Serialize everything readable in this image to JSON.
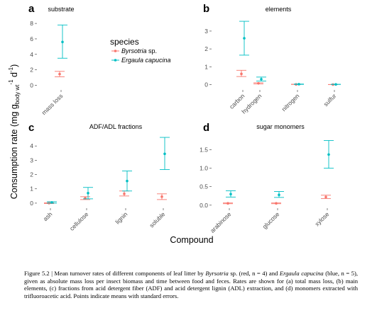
{
  "figure": {
    "ylabel_main": "Consumption rate (mg g",
    "ylabel_sub": "body wt",
    "ylabel_tail": " d",
    "ylabel_exp1": "-1",
    "ylabel_exp2": "-1",
    "ylabel_close": ")",
    "xlabel": "Compound"
  },
  "legend": {
    "title": "species",
    "entries": [
      {
        "name": "Byrsotria",
        "suffix": " sp.",
        "color": "#F8766D"
      },
      {
        "name": "Ergaula capucina",
        "suffix": "",
        "color": "#00BFC4"
      }
    ]
  },
  "chart_data": [
    {
      "type": "scatter",
      "panel": "a",
      "title": "substrate",
      "categories": [
        "mass loss"
      ],
      "yticks": [
        0,
        2,
        4,
        6,
        8
      ],
      "ylim": [
        -0.6,
        9.2
      ],
      "series": [
        {
          "name": "Byrsotria sp.",
          "color": "#F8766D",
          "values": [
            1.45
          ],
          "lower": [
            1.1
          ],
          "upper": [
            1.8
          ]
        },
        {
          "name": "Ergaula capucina",
          "color": "#00BFC4",
          "values": [
            5.6
          ],
          "lower": [
            3.5
          ],
          "upper": [
            7.8
          ]
        }
      ]
    },
    {
      "type": "scatter",
      "panel": "b",
      "title": "elements",
      "categories": [
        "carbon",
        "hydrogen",
        "nitrogen",
        "sulfur"
      ],
      "yticks": [
        0,
        1,
        2,
        3
      ],
      "ylim": [
        -0.3,
        3.95
      ],
      "series": [
        {
          "name": "Byrsotria sp.",
          "color": "#F8766D",
          "values": [
            0.6,
            0.07,
            0.01,
            0.0
          ],
          "lower": [
            0.45,
            0.04,
            0.005,
            0.0
          ],
          "upper": [
            0.8,
            0.1,
            0.02,
            0.005
          ]
        },
        {
          "name": "Ergaula capucina",
          "color": "#00BFC4",
          "values": [
            2.6,
            0.3,
            0.02,
            0.01
          ],
          "lower": [
            1.65,
            0.2,
            0.01,
            0.005
          ],
          "upper": [
            3.55,
            0.42,
            0.03,
            0.015
          ]
        }
      ]
    },
    {
      "type": "scatter",
      "panel": "c",
      "title": "ADF/ADL fractions",
      "categories": [
        "ash",
        "cellulose",
        "lignin",
        "soluble"
      ],
      "yticks": [
        0,
        1,
        2,
        3,
        4
      ],
      "ylim": [
        -0.35,
        4.9
      ],
      "series": [
        {
          "name": "Byrsotria sp.",
          "color": "#F8766D",
          "values": [
            0.0,
            0.35,
            0.65,
            0.45
          ],
          "lower": [
            -0.03,
            0.25,
            0.5,
            0.25
          ],
          "upper": [
            0.03,
            0.45,
            0.85,
            0.65
          ]
        },
        {
          "name": "Ergaula capucina",
          "color": "#00BFC4",
          "values": [
            0.05,
            0.7,
            1.55,
            3.45
          ],
          "lower": [
            0.0,
            0.3,
            0.85,
            2.35
          ],
          "upper": [
            0.1,
            1.1,
            2.25,
            4.6
          ]
        }
      ]
    },
    {
      "type": "scatter",
      "panel": "d",
      "title": "sugar monomers",
      "categories": [
        "arabinose",
        "glucose",
        "xylose"
      ],
      "yticks": [
        0.0,
        0.5,
        1.0,
        1.5
      ],
      "yticklabels": [
        "0.0",
        "0.5",
        "1.0",
        "1.5"
      ],
      "ylim": [
        -0.08,
        1.95
      ],
      "series": [
        {
          "name": "Byrsotria sp.",
          "color": "#F8766D",
          "values": [
            0.05,
            0.05,
            0.22
          ],
          "lower": [
            0.04,
            0.04,
            0.18
          ],
          "upper": [
            0.06,
            0.06,
            0.27
          ]
        },
        {
          "name": "Ergaula capucina",
          "color": "#00BFC4",
          "values": [
            0.3,
            0.28,
            1.37
          ],
          "lower": [
            0.22,
            0.21,
            1.0
          ],
          "upper": [
            0.39,
            0.37,
            1.75
          ]
        }
      ]
    }
  ],
  "caption": {
    "p1": "Figure 5.2 | Mean turnover rates of different components of leaf litter by ",
    "i1": "Byrsotria",
    "p2": " sp. (red, n = 4) and ",
    "i2": "Ergaula capucina",
    "p3": " (blue, n = 5), given as absolute mass loss per insect biomass and time between food and feces. Rates are shown for (a) total mass loss, (b) main elements, (c) fractions from acid detergent fiber (ADF) and acid detergent lignin (ADL) extraction, and (d) monomers extracted with trifluoroacetic acid. Points indicate means with standard errors."
  }
}
